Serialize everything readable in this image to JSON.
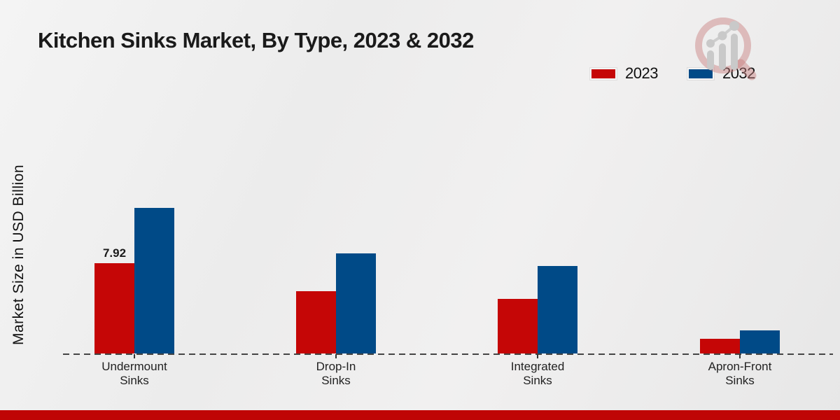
{
  "chart_data": {
    "type": "bar",
    "title": "Kitchen Sinks Market, By Type, 2023 & 2032",
    "ylabel": "Market Size in USD Billion",
    "xlabel": "",
    "categories": [
      "Undermount Sinks",
      "Drop-In Sinks",
      "Integrated Sinks",
      "Apron-Front Sinks"
    ],
    "series": [
      {
        "name": "2023",
        "color": "#c50606",
        "values": [
          7.92,
          5.45,
          4.8,
          1.3
        ],
        "data_labels": [
          "7.92",
          null,
          null,
          null
        ]
      },
      {
        "name": "2032",
        "color": "#004a87",
        "values": [
          12.75,
          8.8,
          7.7,
          2.0
        ],
        "data_labels": [
          null,
          null,
          null,
          null
        ]
      }
    ],
    "ylim": [
      0,
      13.5
    ],
    "grid": false,
    "y_axis_ticks_visible": false,
    "baseline_style": "dashed",
    "legend_position": "top-right"
  },
  "branding": {
    "watermark_icon": "magnifier-bar-chart-logo",
    "bottom_strip_color": "#bf0505"
  }
}
